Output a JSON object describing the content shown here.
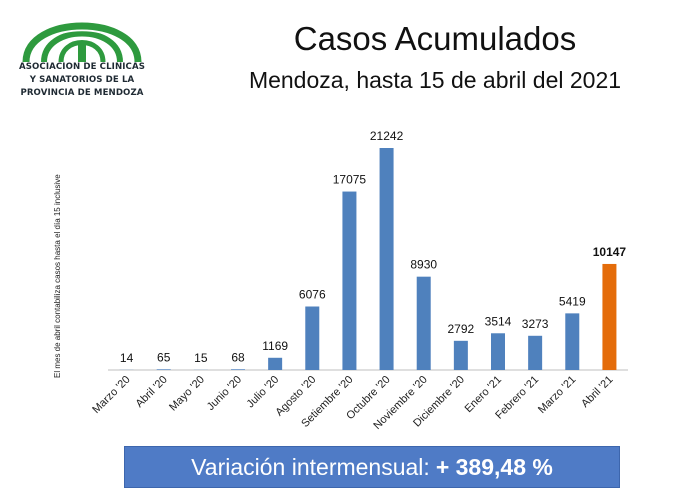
{
  "logo": {
    "lines": [
      "ASOCIACION DE CLINICAS",
      "Y SANATORIOS DE LA",
      "PROVINCIA DE MENDOZA"
    ],
    "colors": {
      "green": "#2e9a3e",
      "dark": "#2f3a40"
    }
  },
  "side_note": "El mes de abril contabiliza casos hasta el día 15  inclusive",
  "banner": {
    "label": "Variación intermensual:",
    "value": "+ 389,48 %",
    "color": "#4f7bc6"
  },
  "chart_data": {
    "type": "bar",
    "title": "Casos Acumulados",
    "subtitle": "Mendoza, hasta 15 de abril del 2021",
    "categories": [
      "Marzo '20",
      "Abril '20",
      "Mayo '20",
      "Junio '20",
      "Julio '20",
      "Agosto '20",
      "Setiembre '20",
      "Octubre '20",
      "Noviembre '20",
      "Diciembre '20",
      "Enero '21",
      "Febrero '21",
      "Marzo '21",
      "Abril '21"
    ],
    "values": [
      14,
      65,
      15,
      68,
      1169,
      6076,
      17075,
      21242,
      8930,
      2792,
      3514,
      3273,
      5419,
      10147
    ],
    "bar_colors": [
      "#4f81bd",
      "#4f81bd",
      "#4f81bd",
      "#4f81bd",
      "#4f81bd",
      "#4f81bd",
      "#4f81bd",
      "#4f81bd",
      "#4f81bd",
      "#4f81bd",
      "#4f81bd",
      "#4f81bd",
      "#4f81bd",
      "#e46c0a"
    ],
    "highlight_index": 13,
    "ylim": [
      0,
      21242
    ],
    "grid": false,
    "data_labels": true,
    "xlabel": "",
    "ylabel": ""
  }
}
